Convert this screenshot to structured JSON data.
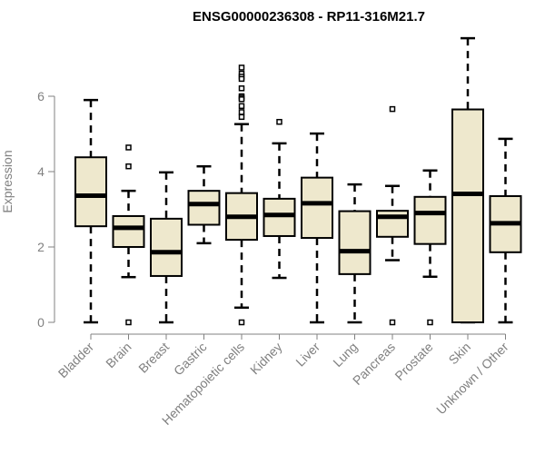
{
  "chart_data": {
    "type": "boxplot",
    "title": "ENSG00000236308 - RP11-316M21.7",
    "xlabel": "",
    "ylabel": "Expression",
    "ylim": [
      0,
      7.6
    ],
    "yticks": [
      0,
      2,
      4,
      6
    ],
    "grid": false,
    "colors": {
      "box_fill": "#EEE8CD",
      "stroke": "#000000",
      "axis": "#808080"
    },
    "categories": [
      "Bladder",
      "Brain",
      "Breast",
      "Gastric",
      "Hematopoietic cells",
      "Kidney",
      "Liver",
      "Lung",
      "Pancreas",
      "Prostate",
      "Skin",
      "Unknown / Other"
    ],
    "boxes": [
      {
        "low": 0,
        "q1": 2.55,
        "median": 3.36,
        "q3": 4.38,
        "high": 5.9,
        "outliers": []
      },
      {
        "low": 1.2,
        "q1": 2.0,
        "median": 2.51,
        "q3": 2.82,
        "high": 3.49,
        "outliers": [
          4.64,
          4.14,
          0
        ]
      },
      {
        "low": 0,
        "q1": 1.23,
        "median": 1.86,
        "q3": 2.75,
        "high": 3.98,
        "outliers": []
      },
      {
        "low": 2.1,
        "q1": 2.59,
        "median": 3.14,
        "q3": 3.49,
        "high": 4.14,
        "outliers": []
      },
      {
        "low": 0.39,
        "q1": 2.19,
        "median": 2.8,
        "q3": 3.43,
        "high": 5.26,
        "outliers": [
          6.76,
          6.6,
          6.52,
          6.46,
          6.21,
          6.0,
          5.96,
          5.92,
          5.74,
          5.58,
          5.45,
          0
        ]
      },
      {
        "low": 1.18,
        "q1": 2.29,
        "median": 2.85,
        "q3": 3.28,
        "high": 4.75,
        "outliers": [
          5.32
        ]
      },
      {
        "low": 0,
        "q1": 2.24,
        "median": 3.16,
        "q3": 3.84,
        "high": 5.01,
        "outliers": []
      },
      {
        "low": 0,
        "q1": 1.28,
        "median": 1.89,
        "q3": 2.95,
        "high": 3.66,
        "outliers": []
      },
      {
        "low": 1.65,
        "q1": 2.27,
        "median": 2.8,
        "q3": 2.96,
        "high": 3.62,
        "outliers": [
          5.66,
          0
        ]
      },
      {
        "low": 1.21,
        "q1": 2.08,
        "median": 2.9,
        "q3": 3.33,
        "high": 4.03,
        "outliers": [
          0
        ]
      },
      {
        "low": 0,
        "q1": 0,
        "median": 3.41,
        "q3": 5.65,
        "high": 7.54,
        "outliers": []
      },
      {
        "low": 0,
        "q1": 1.86,
        "median": 2.63,
        "q3": 3.35,
        "high": 4.87,
        "outliers": []
      }
    ]
  }
}
